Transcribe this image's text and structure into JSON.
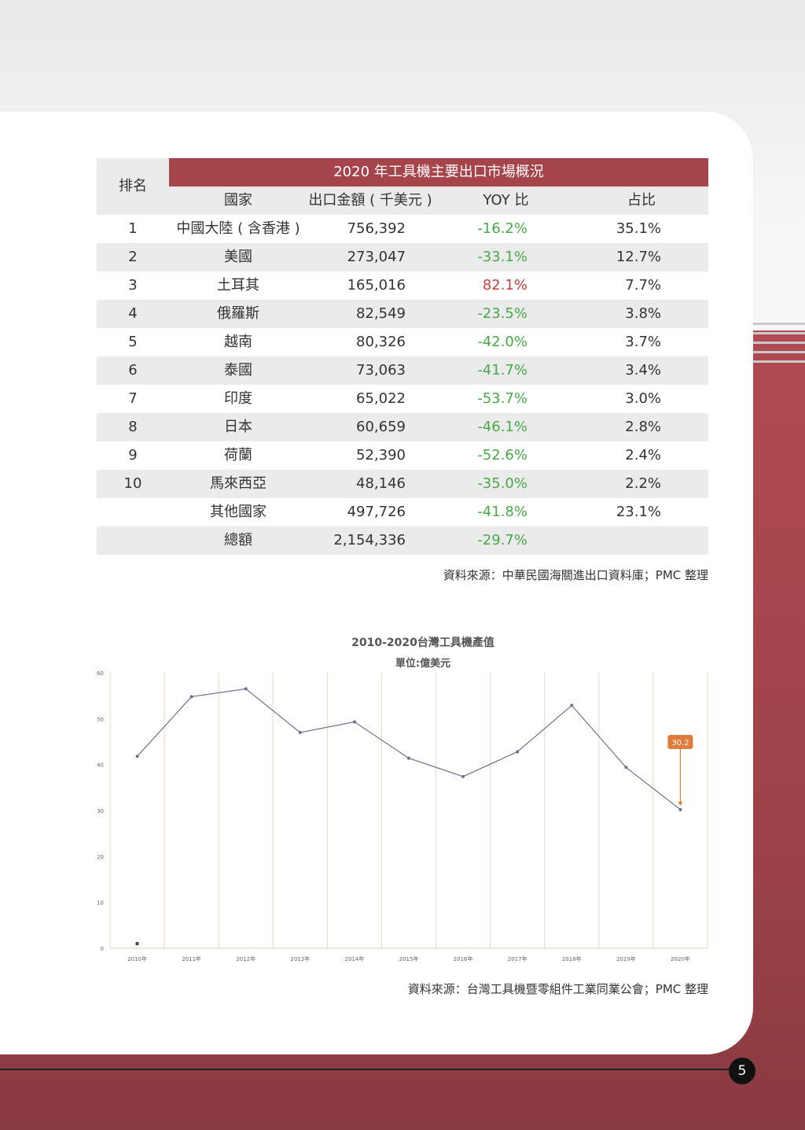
{
  "page_number": "5",
  "table": {
    "title": "2020 年工具機主要出口市場概況",
    "headers": {
      "rank": "排名",
      "country": "國家",
      "amount": "出口金額 ( 千美元 )",
      "yoy": "YOY 比",
      "share": "占比"
    },
    "rows": [
      {
        "rank": "1",
        "country": "中國大陸 ( 含香港 )",
        "amount": "756,392",
        "yoy": "-16.2%",
        "share": "35.1%"
      },
      {
        "rank": "2",
        "country": "美國",
        "amount": "273,047",
        "yoy": "-33.1%",
        "share": "12.7%"
      },
      {
        "rank": "3",
        "country": "土耳其",
        "amount": "165,016",
        "yoy": "82.1%",
        "share": "7.7%"
      },
      {
        "rank": "4",
        "country": "俄羅斯",
        "amount": "82,549",
        "yoy": "-23.5%",
        "share": "3.8%"
      },
      {
        "rank": "5",
        "country": "越南",
        "amount": "80,326",
        "yoy": "-42.0%",
        "share": "3.7%"
      },
      {
        "rank": "6",
        "country": "泰國",
        "amount": "73,063",
        "yoy": "-41.7%",
        "share": "3.4%"
      },
      {
        "rank": "7",
        "country": "印度",
        "amount": "65,022",
        "yoy": "-53.7%",
        "share": "3.0%"
      },
      {
        "rank": "8",
        "country": "日本",
        "amount": "60,659",
        "yoy": "-46.1%",
        "share": "2.8%"
      },
      {
        "rank": "9",
        "country": "荷蘭",
        "amount": "52,390",
        "yoy": "-52.6%",
        "share": "2.4%"
      },
      {
        "rank": "10",
        "country": "馬來西亞",
        "amount": "48,146",
        "yoy": "-35.0%",
        "share": "2.2%"
      },
      {
        "rank": "",
        "country": "其他國家",
        "amount": "497,726",
        "yoy": "-41.8%",
        "share": "23.1%"
      },
      {
        "rank": "",
        "country": "總額",
        "amount": "2,154,336",
        "yoy": "-29.7%",
        "share": ""
      }
    ],
    "source": "資料來源：中華民國海關進出口資料庫；PMC 整理"
  },
  "chart_data": {
    "type": "line",
    "title": "2010-2020台灣工具機產值",
    "subtitle": "單位:億美元",
    "x": [
      "2010年",
      "2011年",
      "2012年",
      "2013年",
      "2014年",
      "2015年",
      "2016年",
      "2017年",
      "2018年",
      "2019年",
      "2020年"
    ],
    "series": [
      {
        "values": [
          41.8,
          54.8,
          56.5,
          47.0,
          49.3,
          41.4,
          37.4,
          42.8,
          52.9,
          39.4,
          30.2
        ]
      }
    ],
    "ylim": [
      0,
      60
    ],
    "yticks": [
      "0",
      "10",
      "20",
      "30",
      "40",
      "50",
      "60"
    ],
    "callout": "30.2",
    "grid": "vertical",
    "line_color": "#6b7290",
    "callout_color": "#e07b39",
    "source": "資料來源：台灣工具機暨零組件工業同業公會；PMC 整理"
  }
}
